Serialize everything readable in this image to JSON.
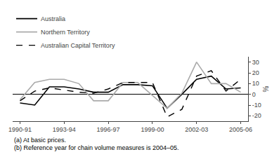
{
  "chart_data": {
    "type": "line",
    "categories": [
      "1990-91",
      null,
      null,
      "1993-94",
      null,
      null,
      "1996-97",
      null,
      null,
      "1999-00",
      null,
      null,
      "2002-03",
      null,
      null,
      "2005-06"
    ],
    "series": [
      {
        "name": "Australia",
        "color": "#000000",
        "line_style": "solid",
        "values": [
          -8,
          -10,
          7,
          7,
          5,
          2,
          2,
          9,
          9,
          8,
          -13,
          0,
          14,
          17,
          5,
          6
        ]
      },
      {
        "name": "Northern Territory",
        "color": "#aaaaaa",
        "line_style": "solid",
        "values": [
          -5,
          11,
          14,
          14,
          10,
          -6,
          -6,
          11,
          11,
          -1,
          -13,
          1,
          30,
          10,
          10,
          2
        ]
      },
      {
        "name": "Australian Capital Territory",
        "color": "#000000",
        "line_style": "dashed",
        "values": [
          -6,
          3,
          6,
          4,
          2,
          1,
          5,
          11,
          11,
          11,
          -21,
          -14,
          17,
          22,
          3,
          14
        ]
      }
    ],
    "ylabel": "%",
    "ylim": [
      -25,
      35
    ],
    "yticks": [
      -20,
      -10,
      0,
      10,
      20,
      30
    ],
    "annotations": [
      "(a) At basic prices.",
      "(b) Reference year for chain volume measures is 2004–05."
    ],
    "grid": false,
    "legend": "top left"
  }
}
